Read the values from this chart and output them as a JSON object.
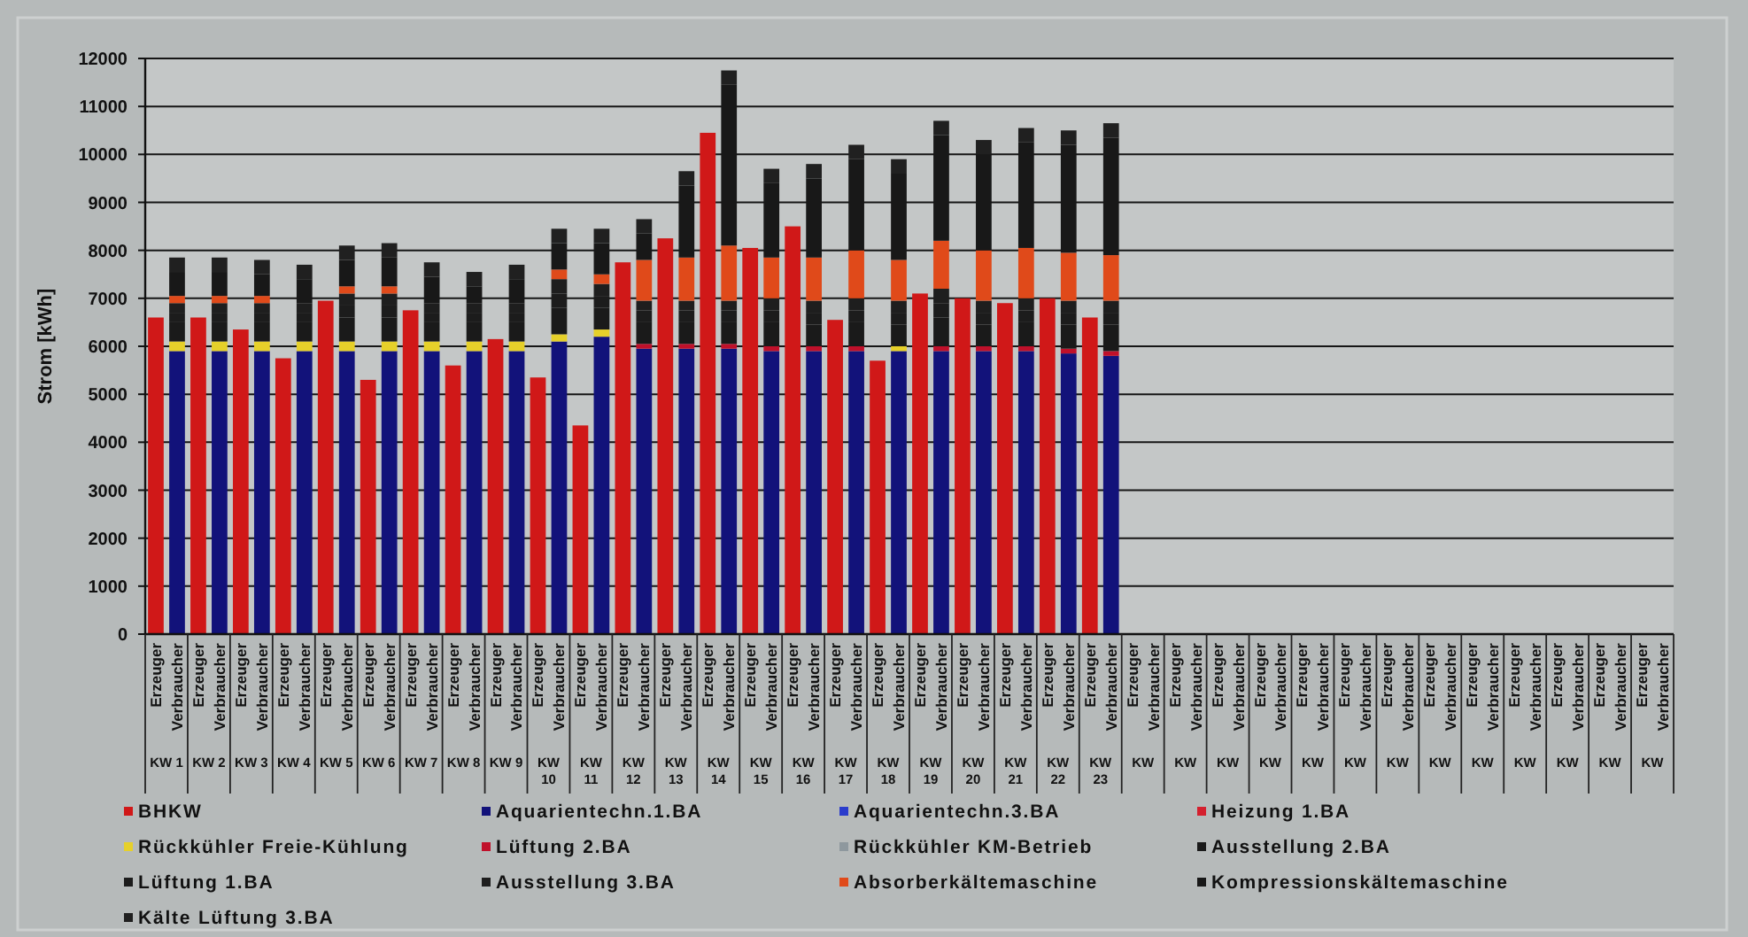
{
  "chart_data": {
    "type": "bar",
    "stacked": true,
    "ylabel": "Strom [kWh]",
    "categories": [
      "Erzeuger",
      "Verbraucher",
      "Erzeuger",
      "Verbraucher",
      "Erzeuger",
      "Verbraucher",
      "Erzeuger",
      "Verbraucher",
      "Erzeuger",
      "Verbraucher",
      "Erzeuger",
      "Verbraucher",
      "Erzeuger",
      "Verbraucher",
      "Erzeuger",
      "Verbraucher",
      "Erzeuger",
      "Verbraucher",
      "Erzeuger",
      "Verbraucher",
      "Erzeuger",
      "Verbraucher",
      "Erzeuger",
      "Verbraucher",
      "Erzeuger",
      "Verbraucher",
      "Erzeuger",
      "Verbraucher",
      "Erzeuger",
      "Verbraucher",
      "Erzeuger",
      "Verbraucher",
      "Erzeuger",
      "Verbraucher",
      "Erzeuger",
      "Verbraucher",
      "Erzeuger",
      "Verbraucher",
      "Erzeuger",
      "Verbraucher",
      "Erzeuger",
      "Verbraucher",
      "Erzeuger",
      "Verbraucher",
      "Erzeuger",
      "Verbraucher",
      "Erzeuger",
      "Verbraucher",
      "Erzeuger",
      "Verbraucher",
      "Erzeuger",
      "Verbraucher",
      "Erzeuger",
      "Verbraucher",
      "Erzeuger",
      "Verbraucher",
      "Erzeuger",
      "Verbraucher",
      "Erzeuger",
      "Verbraucher",
      "Erzeuger",
      "Verbraucher",
      "Erzeuger",
      "Verbraucher",
      "Erzeuger",
      "Verbraucher",
      "Erzeuger",
      "Verbraucher",
      "Erzeuger",
      "Verbraucher",
      "Erzeuger",
      "Verbraucher"
    ],
    "annotations": [
      "KW 1",
      "KW 2",
      "KW 3",
      "KW 4",
      "KW 5",
      "KW 6",
      "KW 7",
      "KW 8",
      "KW 9",
      "KW 10",
      "KW 11",
      "KW 12",
      "KW 13",
      "KW 14",
      "KW 15",
      "KW 16",
      "KW 17",
      "KW 18",
      "KW 19",
      "KW 20",
      "KW 21",
      "KW 22",
      "KW 23",
      "KW",
      "KW",
      "KW",
      "KW",
      "KW",
      "KW",
      "KW",
      "KW",
      "KW",
      "KW",
      "KW",
      "KW",
      "KW"
    ],
    "ylim": [
      0,
      12000
    ],
    "yticks": [
      0,
      1000,
      2000,
      3000,
      4000,
      5000,
      6000,
      7000,
      8000,
      9000,
      10000,
      11000,
      12000
    ],
    "grid": "y",
    "legend": "bottom",
    "series": [
      {
        "name": "BHKW",
        "color": "#d01818",
        "values": [
          6600,
          null,
          6600,
          null,
          6350,
          null,
          5750,
          null,
          6950,
          null,
          5300,
          null,
          6750,
          null,
          5600,
          null,
          6150,
          null,
          5350,
          null,
          4350,
          null,
          7750,
          null,
          8250,
          null,
          10450,
          null,
          8050,
          null,
          8500,
          null,
          6550,
          null,
          5700,
          null,
          7100,
          null,
          7000,
          null,
          6900,
          null,
          7000,
          null,
          6600,
          null,
          null,
          null,
          null,
          null,
          null,
          null,
          null,
          null,
          null,
          null,
          null,
          null,
          null,
          null,
          null,
          null,
          null,
          null,
          null,
          null,
          null,
          null,
          null,
          null,
          null,
          null
        ]
      },
      {
        "name": "Aquarientechn.1.BA",
        "color": "#12127a",
        "values": [
          null,
          5900,
          null,
          5900,
          null,
          5900,
          null,
          5900,
          null,
          5900,
          null,
          5900,
          null,
          5900,
          null,
          5900,
          null,
          5900,
          null,
          6100,
          null,
          6200,
          null,
          5950,
          null,
          5950,
          null,
          5950,
          null,
          5900,
          null,
          5900,
          null,
          5900,
          null,
          5900,
          null,
          5900,
          null,
          5900,
          null,
          5900,
          null,
          5850,
          null,
          5800,
          null,
          null,
          null,
          null,
          null,
          null,
          null,
          null,
          null,
          null,
          null,
          null,
          null,
          null,
          null,
          null,
          null,
          null,
          null,
          null,
          null,
          null,
          null,
          null,
          null,
          null
        ]
      },
      {
        "name": "Aquarientechn.3.BA",
        "color": "#2a3ccc",
        "values": [
          null,
          null,
          null,
          null,
          null,
          null,
          null,
          null,
          null,
          null,
          null,
          null,
          null,
          null,
          null,
          null,
          null,
          null,
          null,
          null,
          null,
          null,
          null,
          null,
          null,
          null,
          null,
          null,
          null,
          null,
          null,
          null,
          null,
          null,
          null,
          null,
          null,
          null,
          null,
          null,
          null,
          null,
          null,
          null,
          null,
          null,
          null,
          null,
          null,
          null,
          null,
          null,
          null,
          null,
          null,
          null,
          null,
          null,
          null,
          null,
          null,
          null,
          null,
          null,
          null,
          null,
          null,
          null,
          null,
          null,
          null,
          null
        ]
      },
      {
        "name": "Heizung 1.BA",
        "color": "#d4202e",
        "values": [
          null,
          null,
          null,
          null,
          null,
          null,
          null,
          null,
          null,
          null,
          null,
          null,
          null,
          null,
          null,
          null,
          null,
          null,
          null,
          null,
          null,
          null,
          null,
          null,
          null,
          null,
          null,
          null,
          null,
          null,
          null,
          null,
          null,
          null,
          null,
          null,
          null,
          null,
          null,
          null,
          null,
          null,
          null,
          null,
          null,
          null,
          null,
          null,
          null,
          null,
          null,
          null,
          null,
          null,
          null,
          null,
          null,
          null,
          null,
          null,
          null,
          null,
          null,
          null,
          null,
          null,
          null,
          null,
          null,
          null,
          null,
          null
        ]
      },
      {
        "name": "Rückkühler Freie-Kühlung",
        "color": "#e6d02a",
        "values": [
          null,
          200,
          null,
          200,
          null,
          200,
          null,
          200,
          null,
          200,
          null,
          200,
          null,
          200,
          null,
          200,
          null,
          200,
          null,
          150,
          null,
          150,
          null,
          null,
          null,
          null,
          null,
          null,
          null,
          null,
          null,
          null,
          null,
          null,
          null,
          100,
          null,
          null,
          null,
          null,
          null,
          null,
          null,
          null,
          null,
          null,
          null,
          null,
          null,
          null,
          null,
          null,
          null,
          null,
          null,
          null,
          null,
          null,
          null,
          null,
          null,
          null,
          null,
          null,
          null,
          null,
          null,
          null,
          null,
          null,
          null,
          null
        ]
      },
      {
        "name": "Lüftung 2.BA",
        "color": "#c0102a",
        "values": [
          null,
          null,
          null,
          null,
          null,
          null,
          null,
          null,
          null,
          null,
          null,
          null,
          null,
          null,
          null,
          null,
          null,
          null,
          null,
          null,
          null,
          null,
          null,
          100,
          null,
          100,
          null,
          100,
          null,
          100,
          null,
          100,
          null,
          100,
          null,
          null,
          null,
          100,
          null,
          100,
          null,
          100,
          null,
          100,
          null,
          100,
          null,
          null,
          null,
          null,
          null,
          null,
          null,
          null,
          null,
          null,
          null,
          null,
          null,
          null,
          null,
          null,
          null,
          null,
          null,
          null,
          null,
          null,
          null,
          null,
          null,
          null
        ]
      },
      {
        "name": "Rückkühler KM-Betrieb",
        "color": "#8e989e",
        "values": [
          null,
          null,
          null,
          null,
          null,
          null,
          null,
          null,
          null,
          null,
          null,
          null,
          null,
          null,
          null,
          null,
          null,
          null,
          null,
          null,
          null,
          null,
          null,
          null,
          null,
          null,
          null,
          null,
          null,
          null,
          null,
          null,
          null,
          null,
          null,
          null,
          null,
          null,
          null,
          null,
          null,
          null,
          null,
          null,
          null,
          null,
          null,
          null,
          null,
          null,
          null,
          null,
          null,
          null,
          null,
          null,
          null,
          null,
          null,
          null,
          null,
          null,
          null,
          null,
          null,
          null,
          null,
          null,
          null,
          null,
          null,
          null
        ]
      },
      {
        "name": "Ausstellung 2.BA",
        "color": "#1a1a1a",
        "values": [
          null,
          400,
          null,
          400,
          null,
          400,
          null,
          400,
          null,
          500,
          null,
          500,
          null,
          400,
          null,
          400,
          null,
          400,
          null,
          550,
          null,
          450,
          null,
          450,
          null,
          450,
          null,
          450,
          null,
          500,
          null,
          450,
          null,
          500,
          null,
          450,
          null,
          600,
          null,
          450,
          null,
          500,
          null,
          500,
          null,
          550,
          null,
          null,
          null,
          null,
          null,
          null,
          null,
          null,
          null,
          null,
          null,
          null,
          null,
          null,
          null,
          null,
          null,
          null,
          null,
          null,
          null,
          null,
          null,
          null,
          null,
          null
        ]
      },
      {
        "name": "Lüftung 1.BA",
        "color": "#1c1c1c",
        "values": [
          null,
          200,
          null,
          200,
          null,
          200,
          null,
          200,
          null,
          250,
          null,
          250,
          null,
          200,
          null,
          200,
          null,
          200,
          null,
          300,
          null,
          250,
          null,
          250,
          null,
          250,
          null,
          250,
          null,
          250,
          null,
          250,
          null,
          250,
          null,
          250,
          null,
          300,
          null,
          250,
          null,
          250,
          null,
          250,
          null,
          250,
          null,
          null,
          null,
          null,
          null,
          null,
          null,
          null,
          null,
          null,
          null,
          null,
          null,
          null,
          null,
          null,
          null,
          null,
          null,
          null,
          null,
          null,
          null,
          null,
          null,
          null
        ]
      },
      {
        "name": "Ausstellung 3.BA",
        "color": "#1e1e1e",
        "values": [
          null,
          200,
          null,
          200,
          null,
          200,
          null,
          200,
          null,
          250,
          null,
          250,
          null,
          200,
          null,
          200,
          null,
          200,
          null,
          300,
          null,
          250,
          null,
          200,
          null,
          200,
          null,
          200,
          null,
          250,
          null,
          250,
          null,
          250,
          null,
          250,
          null,
          300,
          null,
          250,
          null,
          250,
          null,
          250,
          null,
          250,
          null,
          null,
          null,
          null,
          null,
          null,
          null,
          null,
          null,
          null,
          null,
          null,
          null,
          null,
          null,
          null,
          null,
          null,
          null,
          null,
          null,
          null,
          null,
          null,
          null,
          null
        ]
      },
      {
        "name": "Absorberkältemaschine",
        "color": "#e04a1a",
        "values": [
          null,
          150,
          null,
          150,
          null,
          150,
          null,
          null,
          null,
          150,
          null,
          150,
          null,
          null,
          null,
          null,
          null,
          null,
          null,
          200,
          null,
          200,
          null,
          850,
          null,
          900,
          null,
          1150,
          null,
          850,
          null,
          900,
          null,
          1000,
          null,
          850,
          null,
          1000,
          null,
          1050,
          null,
          1050,
          null,
          1000,
          null,
          950,
          null,
          null,
          null,
          null,
          null,
          null,
          null,
          null,
          null,
          null,
          null,
          null,
          null,
          null,
          null,
          null,
          null,
          null,
          null,
          null,
          null,
          null,
          null,
          null,
          null,
          null
        ]
      },
      {
        "name": "Kompressionskältemaschine",
        "color": "#181818",
        "values": [
          null,
          500,
          null,
          500,
          null,
          450,
          null,
          500,
          null,
          550,
          null,
          600,
          null,
          550,
          null,
          350,
          null,
          500,
          null,
          550,
          null,
          650,
          null,
          550,
          null,
          1500,
          null,
          3350,
          null,
          1550,
          null,
          1650,
          null,
          1900,
          null,
          1800,
          null,
          2200,
          null,
          2000,
          null,
          2200,
          null,
          2250,
          null,
          2450,
          null,
          null,
          null,
          null,
          null,
          null,
          null,
          null,
          null,
          null,
          null,
          null,
          null,
          null,
          null,
          null,
          null,
          null,
          null,
          null,
          null,
          null,
          null,
          null,
          null,
          null
        ]
      },
      {
        "name": "Kälte Lüftung 3.BA",
        "color": "#202020",
        "values": [
          null,
          300,
          null,
          300,
          null,
          300,
          null,
          300,
          null,
          300,
          null,
          300,
          null,
          300,
          null,
          300,
          null,
          300,
          null,
          300,
          null,
          300,
          null,
          300,
          null,
          300,
          null,
          300,
          null,
          300,
          null,
          300,
          null,
          300,
          null,
          300,
          null,
          300,
          null,
          300,
          null,
          300,
          null,
          300,
          null,
          300,
          null,
          null,
          null,
          null,
          null,
          null,
          null,
          null,
          null,
          null,
          null,
          null,
          null,
          null,
          null,
          null,
          null,
          null,
          null,
          null,
          null,
          null,
          null,
          null,
          null,
          null
        ]
      }
    ]
  }
}
